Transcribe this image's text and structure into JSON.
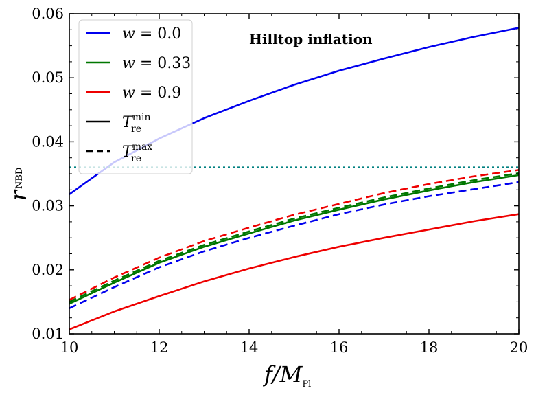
{
  "chart_data": {
    "type": "line",
    "title": "",
    "annotation": "Hilltop inflation",
    "xlabel": {
      "main": "f/M",
      "sub": "Pl"
    },
    "ylabel": {
      "main": "r",
      "sub": "NBD"
    },
    "xlim": [
      10,
      20
    ],
    "ylim": [
      0.01,
      0.06
    ],
    "x_ticks": [
      10,
      12,
      14,
      16,
      18,
      20
    ],
    "x_tick_labels": [
      "10",
      "12",
      "14",
      "16",
      "18",
      "20"
    ],
    "y_ticks": [
      0.01,
      0.02,
      0.03,
      0.04,
      0.05,
      0.06
    ],
    "y_tick_labels": [
      "0.01",
      "0.02",
      "0.03",
      "0.04",
      "0.05",
      "0.06"
    ],
    "grid": false,
    "legend_position": "top-left",
    "x": [
      10,
      11,
      12,
      13,
      14,
      15,
      16,
      17,
      18,
      19,
      20
    ],
    "series": [
      {
        "key": "w0_min",
        "color": "#0000ee",
        "dash": "solid",
        "values": [
          0.0318,
          0.0368,
          0.0405,
          0.0437,
          0.0464,
          0.0489,
          0.0511,
          0.053,
          0.0548,
          0.0564,
          0.0578
        ]
      },
      {
        "key": "w0_max",
        "color": "#0000ee",
        "dash": "dashed",
        "values": [
          0.014,
          0.0173,
          0.0204,
          0.0229,
          0.025,
          0.0269,
          0.0287,
          0.0302,
          0.0315,
          0.0326,
          0.0337
        ]
      },
      {
        "key": "w033_min",
        "color": "#007700",
        "dash": "solid",
        "values": [
          0.0147,
          0.018,
          0.0211,
          0.0236,
          0.0257,
          0.0277,
          0.0294,
          0.031,
          0.0324,
          0.0337,
          0.0348
        ]
      },
      {
        "key": "w033_max",
        "color": "#007700",
        "dash": "dashed",
        "values": [
          0.015,
          0.0183,
          0.0214,
          0.0239,
          0.026,
          0.028,
          0.0297,
          0.0313,
          0.0327,
          0.034,
          0.0351
        ]
      },
      {
        "key": "w09_min",
        "color": "#ee0000",
        "dash": "solid",
        "values": [
          0.0107,
          0.0135,
          0.0159,
          0.0182,
          0.0202,
          0.022,
          0.0236,
          0.025,
          0.0263,
          0.0276,
          0.0287
        ]
      },
      {
        "key": "w09_max",
        "color": "#ee0000",
        "dash": "dashed",
        "values": [
          0.0153,
          0.0188,
          0.0219,
          0.0245,
          0.0266,
          0.0286,
          0.0303,
          0.032,
          0.0334,
          0.0346,
          0.0356
        ]
      }
    ],
    "reference_line": {
      "y": 0.036,
      "color": "#008080",
      "dash": "dotted"
    },
    "legend": [
      {
        "prefix": "w",
        "label": " = 0.0",
        "color": "#0000ee",
        "dash": "solid"
      },
      {
        "prefix": "w",
        "label": " = 0.33",
        "color": "#007700",
        "dash": "solid"
      },
      {
        "prefix": "w",
        "label": " = 0.9",
        "color": "#ee0000",
        "dash": "solid"
      },
      {
        "prefix": "T",
        "sub": "re",
        "sup": "min",
        "color": "#000000",
        "dash": "solid"
      },
      {
        "prefix": "T",
        "sub": "re",
        "sup": "max",
        "color": "#000000",
        "dash": "dashed"
      }
    ]
  }
}
